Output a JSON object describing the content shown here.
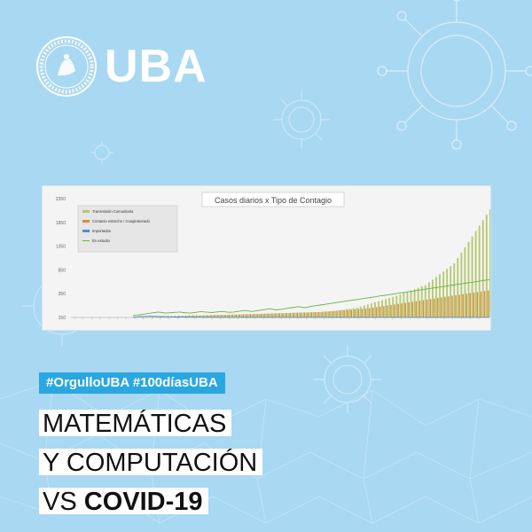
{
  "brand": {
    "name": "UBA"
  },
  "hashtags": "#OrgulloUBA #100díasUBA",
  "headline": {
    "line1": "MATEMÁTICAS",
    "line2": "Y COMPUTACIÓN",
    "line3_prefix": "VS ",
    "line3_bold": "COVID-19"
  },
  "colors": {
    "background": "#a9d8f3",
    "accent": "#2aa7e1",
    "comunitaria": "#b5c86e",
    "contacto": "#d98c3c",
    "importados": "#4f8fd0",
    "estudio": "#66b545"
  },
  "chart_data": {
    "type": "bar",
    "title": "Casos diarios x Tipo de Contagio",
    "ylim": [
      150,
      2350
    ],
    "yticks": [
      "2350",
      "1850",
      "1350",
      "850",
      "350",
      "150"
    ],
    "series": [
      {
        "name": "Transmisión Comunitaria",
        "values": [
          2,
          3,
          4,
          5,
          6,
          8,
          10,
          12,
          14,
          16,
          18,
          20,
          20,
          22,
          24,
          26,
          28,
          30,
          32,
          34,
          36,
          38,
          40,
          42,
          44,
          46,
          48,
          50,
          52,
          54,
          56,
          58,
          60,
          62,
          64,
          66,
          68,
          70,
          72,
          74,
          76,
          78,
          80,
          82,
          84,
          86,
          88,
          90,
          92,
          94,
          96,
          98,
          100,
          105,
          110,
          115,
          120,
          130,
          140,
          150,
          160,
          170,
          180,
          200,
          220,
          240,
          260,
          280,
          300,
          320,
          340,
          360,
          380,
          400,
          420,
          450,
          480,
          500,
          520,
          550,
          580,
          600,
          650,
          700,
          750,
          800,
          850,
          900,
          950,
          1000,
          1100,
          1200,
          1300,
          1400,
          1500,
          1600,
          1700,
          1800,
          1900,
          2000
        ]
      },
      {
        "name": "Contacto estrecho / Conglomerado",
        "values": [
          5,
          6,
          8,
          10,
          12,
          15,
          18,
          20,
          22,
          25,
          28,
          30,
          32,
          34,
          36,
          38,
          40,
          40,
          40,
          42,
          44,
          46,
          48,
          50,
          50,
          50,
          52,
          54,
          56,
          58,
          60,
          60,
          62,
          64,
          66,
          68,
          70,
          72,
          74,
          76,
          78,
          80,
          82,
          84,
          86,
          88,
          90,
          92,
          94,
          96,
          98,
          100,
          105,
          110,
          115,
          120,
          125,
          130,
          135,
          140,
          145,
          150,
          155,
          160,
          165,
          170,
          180,
          190,
          200,
          210,
          220,
          230,
          240,
          250,
          260,
          270,
          280,
          290,
          300,
          310,
          320,
          330,
          340,
          350,
          360,
          370,
          380,
          390,
          400,
          410,
          420,
          430,
          440,
          450,
          460,
          470,
          480,
          490,
          500,
          510
        ]
      },
      {
        "name": "Importados",
        "values": [
          10,
          12,
          15,
          18,
          20,
          22,
          20,
          18,
          16,
          14,
          12,
          10,
          9,
          8,
          7,
          6,
          5,
          5,
          4,
          4,
          3,
          3,
          3,
          2,
          2,
          2,
          2,
          1,
          1,
          1,
          1,
          1,
          1,
          1,
          1,
          1,
          1,
          1,
          1,
          1,
          1,
          1,
          1,
          1,
          1,
          1,
          1,
          1,
          1,
          1,
          1,
          1,
          1,
          1,
          1,
          1,
          1,
          1,
          1,
          1,
          1,
          1,
          1,
          1,
          1,
          1,
          1,
          1,
          1,
          1,
          1,
          1,
          1,
          1,
          1,
          1,
          1,
          1,
          1,
          1,
          1,
          1,
          1,
          1,
          1,
          1,
          1,
          1,
          1,
          1,
          1,
          1,
          1,
          1,
          1,
          1,
          1,
          1,
          1,
          1
        ]
      },
      {
        "name": "En estudio",
        "values": [
          40,
          45,
          50,
          60,
          70,
          80,
          90,
          100,
          90,
          80,
          85,
          90,
          95,
          100,
          90,
          85,
          80,
          90,
          100,
          110,
          100,
          95,
          90,
          100,
          105,
          110,
          100,
          95,
          100,
          110,
          120,
          130,
          120,
          110,
          120,
          130,
          140,
          150,
          160,
          150,
          140,
          150,
          160,
          170,
          180,
          190,
          200,
          190,
          180,
          200,
          210,
          220,
          230,
          240,
          250,
          260,
          270,
          280,
          290,
          300,
          310,
          320,
          330,
          340,
          350,
          360,
          370,
          380,
          390,
          400,
          410,
          420,
          430,
          440,
          450,
          460,
          470,
          480,
          490,
          500,
          510,
          520,
          530,
          540,
          550,
          560,
          570,
          580,
          590,
          600,
          610,
          620,
          630,
          640,
          650,
          660,
          670,
          680,
          690,
          700
        ]
      }
    ],
    "legend": "top-left",
    "grid": false
  }
}
